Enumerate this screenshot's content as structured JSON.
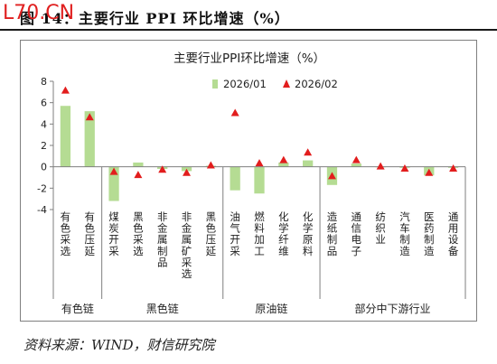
{
  "figure": {
    "title": "图 14：主要行业 PPI 环比增速（%）",
    "watermark": "L70.CN",
    "source": "资料来源：WIND，财信研究院"
  },
  "colors": {
    "bar": "#b5dc93",
    "marker": "#e21d1d",
    "axis": "#7f7f7f",
    "text": "#222222"
  },
  "chart_data": {
    "type": "bar",
    "title": "主要行业PPI环比增速（%）",
    "ylim": [
      -4,
      8
    ],
    "yticks": [
      "-4",
      "-2",
      "0",
      "2",
      "4",
      "6",
      "8"
    ],
    "ytick_values": [
      -4,
      -2,
      0,
      2,
      4,
      6,
      8
    ],
    "categories": [
      "有色采选",
      "有色压延",
      "煤炭开采",
      "黑色采选",
      "非金属制品",
      "非金属矿采选",
      "黑色压延",
      "油气开采",
      "燃料加工",
      "化学纤维",
      "化学原料",
      "造纸制品",
      "通信电子",
      "纺织业",
      "汽车制造",
      "医药制造",
      "通用设备"
    ],
    "groups": [
      {
        "label": "有色链",
        "span": 2
      },
      {
        "label": "黑色链",
        "span": 5
      },
      {
        "label": "原油链",
        "span": 4
      },
      {
        "label": "部分中下游行业",
        "span": 6
      }
    ],
    "series": [
      {
        "name": "2026/01",
        "kind": "bar",
        "values": [
          5.7,
          5.2,
          -3.2,
          0.4,
          -0.2,
          -0.4,
          0.1,
          -2.2,
          -2.5,
          0.4,
          0.6,
          -1.7,
          0.3,
          0.0,
          -0.1,
          -0.8,
          -0.1
        ]
      },
      {
        "name": "2026/02",
        "kind": "marker",
        "values": [
          7.1,
          4.6,
          -0.5,
          -0.8,
          -0.3,
          -0.6,
          0.1,
          5.0,
          0.3,
          0.6,
          1.3,
          -0.9,
          0.6,
          0.0,
          -0.2,
          -0.6,
          -0.2
        ]
      }
    ],
    "legend_position": "top-center",
    "grid": false
  }
}
